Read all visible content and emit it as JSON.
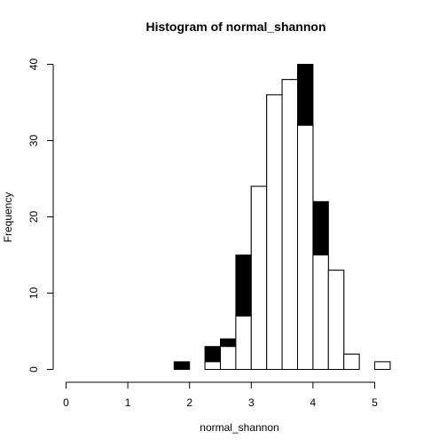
{
  "chart_data": {
    "type": "bar",
    "title": "Histogram of normal_shannon",
    "xlabel": "normal_shannon",
    "ylabel": "Frequency",
    "xlim": [
      0,
      5.75
    ],
    "ylim": [
      0,
      40
    ],
    "x_ticks": [
      0,
      1,
      2,
      3,
      4,
      5
    ],
    "y_ticks": [
      0,
      10,
      20,
      30,
      40
    ],
    "grid": false,
    "bin_width": 0.25,
    "bin_starts": [
      0,
      0.25,
      0.5,
      0.75,
      1,
      1.25,
      1.5,
      1.75,
      2,
      2.25,
      2.5,
      2.75,
      3,
      3.25,
      3.5,
      3.75,
      4,
      4.25,
      4.5,
      4.75,
      5,
      5.25,
      5.5
    ],
    "series": [
      {
        "fill": "#000000",
        "values": [
          0,
          0,
          0,
          0,
          0,
          0,
          0,
          1,
          0,
          3,
          4,
          15,
          24,
          36,
          38,
          40,
          22,
          13,
          2,
          0,
          1,
          0,
          0
        ]
      },
      {
        "fill": "#ffffff",
        "values": [
          0,
          0,
          0,
          0,
          0,
          0,
          0,
          0,
          0,
          1,
          3,
          7,
          24,
          36,
          38,
          32,
          15,
          13,
          2,
          0,
          1,
          0,
          0
        ]
      }
    ]
  }
}
